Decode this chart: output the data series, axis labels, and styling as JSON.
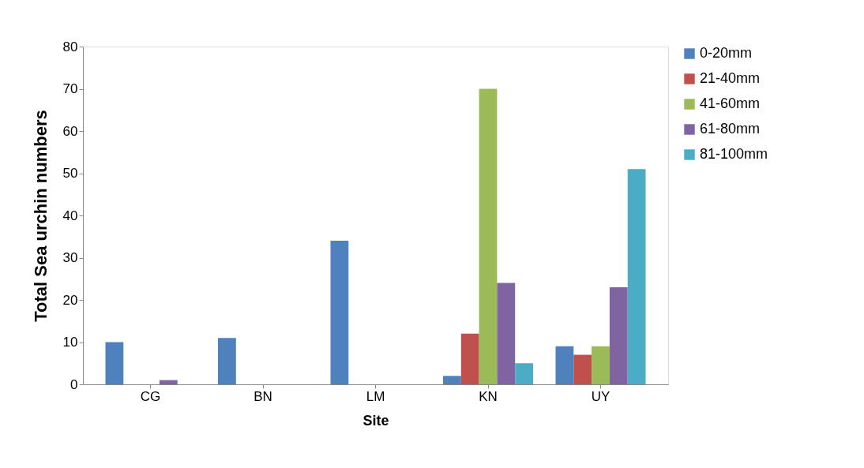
{
  "chart_data": {
    "type": "bar",
    "xlabel": "Site",
    "ylabel": "Total  Sea urchin numbers",
    "categories": [
      "CG",
      "BN",
      "LM",
      "KN",
      "UY"
    ],
    "series": [
      {
        "name": "0-20mm",
        "color": "#4f81bd",
        "values": [
          10,
          11,
          34,
          2,
          9
        ]
      },
      {
        "name": "21-40mm",
        "color": "#c0504d",
        "values": [
          0,
          0,
          0,
          12,
          7
        ]
      },
      {
        "name": "41-60mm",
        "color": "#9bbb59",
        "values": [
          0,
          0,
          0,
          70,
          9
        ]
      },
      {
        "name": "61-80mm",
        "color": "#8064a2",
        "values": [
          1,
          0,
          0,
          24,
          23
        ]
      },
      {
        "name": "81-100mm",
        "color": "#4bacc6",
        "values": [
          0,
          0,
          0,
          5,
          51
        ]
      }
    ],
    "ylim": [
      0,
      80
    ],
    "yticks": [
      0,
      10,
      20,
      30,
      40,
      50,
      60,
      70,
      80
    ],
    "grid": false,
    "legend": "right"
  }
}
